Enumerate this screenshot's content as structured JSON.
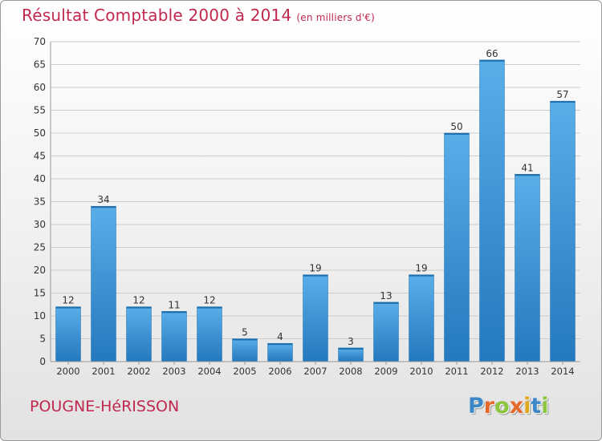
{
  "title": "Résultat Comptable 2000 à 2014",
  "unit": "(en milliers d'€)",
  "place": "POUGNE-HéRISSON",
  "brand": {
    "text": "Proxiti",
    "letter_colors": [
      "#3b87c8",
      "#e4682a",
      "#8cc63f",
      "#e4682a",
      "#e0a81c",
      "#3b87c8",
      "#8cc63f"
    ]
  },
  "colors": {
    "accent": "#c0284e",
    "bar": "#3a93d8",
    "bar_dark": "#1f74b8",
    "grid": "#cccccc",
    "axis_text": "#333333"
  },
  "chart_data": {
    "type": "bar",
    "title": "Résultat Comptable 2000 à 2014",
    "xlabel": "",
    "ylabel": "",
    "categories": [
      "2000",
      "2001",
      "2002",
      "2003",
      "2004",
      "2005",
      "2006",
      "2007",
      "2008",
      "2009",
      "2010",
      "2011",
      "2012",
      "2013",
      "2014"
    ],
    "values": [
      12,
      34,
      12,
      11,
      12,
      5,
      4,
      19,
      3,
      13,
      19,
      50,
      66,
      41,
      57
    ],
    "ylim": [
      0,
      70
    ],
    "yticks": [
      0,
      5,
      10,
      15,
      20,
      25,
      30,
      35,
      40,
      45,
      50,
      55,
      60,
      65,
      70
    ],
    "grid": true,
    "data_labels": true
  }
}
